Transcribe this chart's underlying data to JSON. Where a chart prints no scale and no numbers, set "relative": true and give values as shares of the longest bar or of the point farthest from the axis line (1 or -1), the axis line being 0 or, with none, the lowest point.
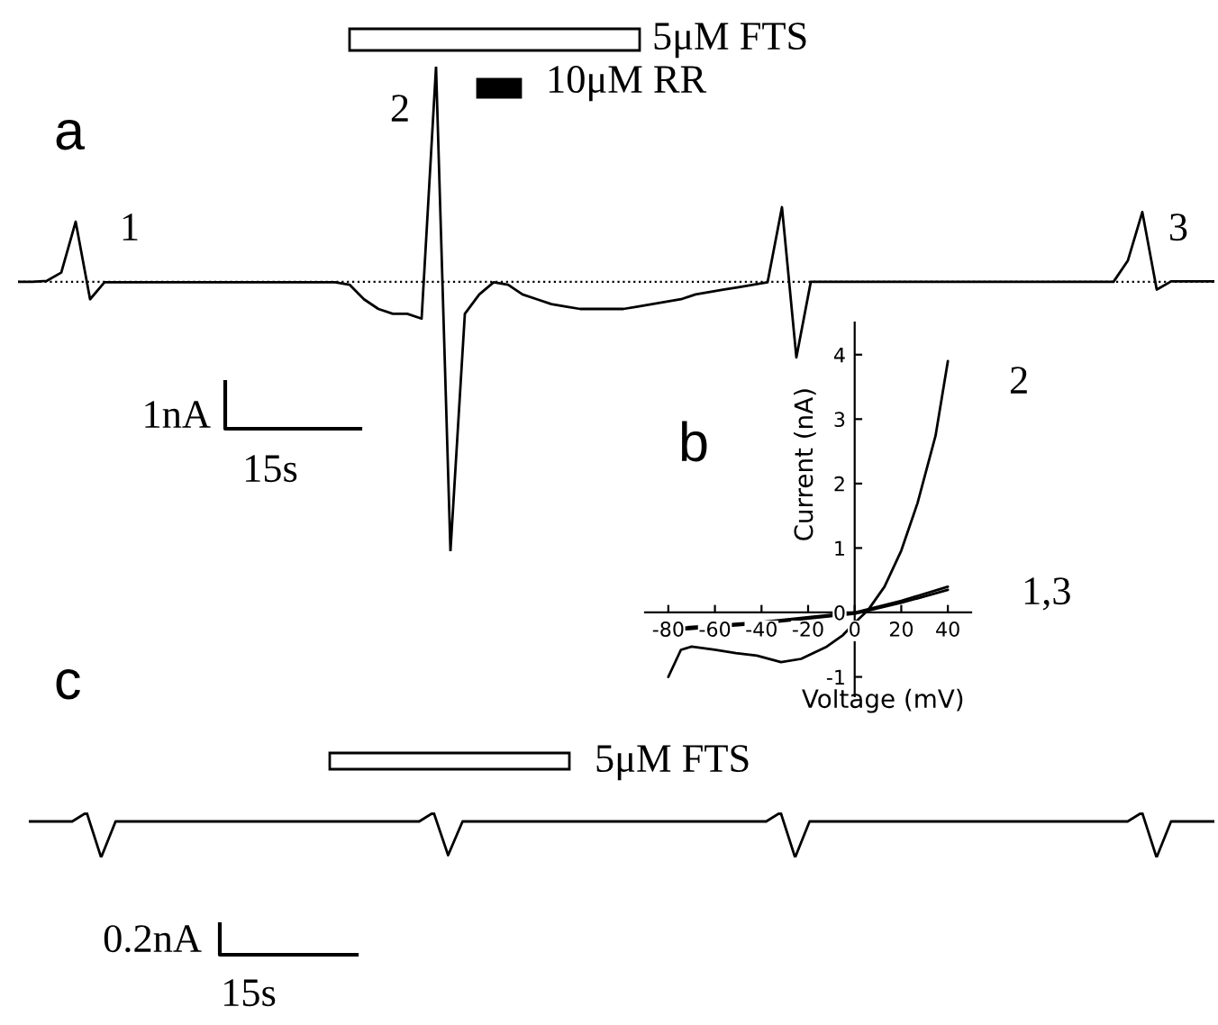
{
  "chart_data": [
    {
      "type": "line",
      "relative": true,
      "categories": [
        null,
        null,
        null,
        null,
        null,
        null,
        null,
        null,
        null,
        null,
        null,
        null,
        null,
        null,
        null,
        null,
        null,
        null,
        null,
        null,
        null,
        null,
        null,
        null,
        null,
        null,
        null,
        null,
        null,
        null,
        null,
        null,
        null,
        null,
        null,
        null,
        null,
        null,
        null,
        null,
        null,
        null,
        null,
        null,
        null,
        null,
        null,
        null,
        null,
        null,
        null,
        null,
        null,
        null,
        null,
        null,
        null,
        null,
        null,
        null,
        null,
        null,
        null,
        null,
        null,
        null,
        null,
        null,
        null,
        null,
        null,
        null,
        null,
        null,
        null,
        null,
        null,
        null,
        null,
        null,
        null,
        null,
        null,
        null
      ],
      "series": [
        {
          "color": "#000000",
          "values": [
            0.556,
            0.556,
            0.558,
            0.575,
            0.68,
            0.52,
            0.555,
            0.555,
            0.555,
            0.555,
            0.555,
            0.555,
            0.555,
            0.555,
            0.555,
            0.555,
            0.555,
            0.555,
            0.555,
            0.555,
            0.555,
            0.555,
            0.555,
            0.55,
            0.52,
            0.5,
            0.49,
            0.49,
            0.48,
            1.0,
            0.0,
            0.49,
            0.53,
            0.555,
            0.55,
            0.53,
            0.52,
            0.51,
            0.505,
            0.5,
            0.5,
            0.5,
            0.5,
            0.505,
            0.51,
            0.515,
            0.52,
            0.53,
            0.535,
            0.54,
            0.545,
            0.55,
            0.555,
            0.71,
            0.4,
            0.556,
            0.556,
            0.556,
            0.556,
            0.556,
            0.556,
            0.556,
            0.556,
            0.556,
            0.556,
            0.556,
            0.556,
            0.556,
            0.556,
            0.556,
            0.556,
            0.556,
            0.556,
            0.556,
            0.556,
            0.556,
            0.556,
            0.6,
            0.7,
            0.54,
            0.557,
            0.557,
            0.557,
            0.557
          ]
        }
      ],
      "ref_lines": [
        {
          "axis": "y",
          "value": 0.556,
          "line_style": "dotted",
          "color": "#000000"
        }
      ],
      "annotations": [
        "a",
        "1",
        "2",
        "3",
        "5μM FTS",
        "10μM RR",
        "1nA",
        "15s"
      ]
    },
    {
      "type": "line",
      "xlabel": "Voltage (mV)",
      "ylabel": "Current (nA)",
      "xlim": [
        -90,
        50
      ],
      "ylim": [
        -1.3,
        4.5
      ],
      "xticks": [
        -80,
        -60,
        -40,
        -20,
        0,
        20,
        40
      ],
      "yticks": [
        -1,
        0,
        1,
        2,
        3,
        4
      ],
      "series": [
        {
          "name": "2",
          "color": "#000000",
          "x": [
            -80,
            -74.6,
            -70,
            -60,
            -51,
            -42,
            -31.6,
            -23,
            -12,
            -5,
            0,
            5.6,
            12.8,
            20,
            27,
            34.7,
            40
          ],
          "values": [
            -1.0,
            -0.58,
            -0.53,
            -0.58,
            -0.63,
            -0.67,
            -0.77,
            -0.72,
            -0.53,
            -0.35,
            -0.16,
            0.03,
            0.4,
            0.96,
            1.7,
            2.74,
            3.9
          ]
        },
        {
          "name": "1,3",
          "color": "#000000",
          "x": [
            -80,
            -40,
            0,
            20,
            40
          ],
          "values": [
            -0.25,
            -0.15,
            0.0,
            0.18,
            0.4
          ]
        },
        {
          "color": "#000000",
          "x": [
            -80,
            -40,
            0,
            20,
            40
          ],
          "values": [
            -0.28,
            -0.17,
            -0.02,
            0.15,
            0.35
          ]
        }
      ],
      "annotations": [
        "b"
      ]
    },
    {
      "type": "line",
      "relative": true,
      "categories": [
        null,
        null,
        null,
        null,
        null,
        null,
        null,
        null,
        null,
        null,
        null,
        null,
        null,
        null,
        null,
        null,
        null,
        null,
        null,
        null,
        null,
        null,
        null,
        null,
        null,
        null,
        null,
        null,
        null,
        null,
        null,
        null,
        null,
        null,
        null,
        null,
        null,
        null,
        null,
        null,
        null,
        null,
        null,
        null,
        null,
        null,
        null,
        null,
        null,
        null,
        null,
        null,
        null,
        null,
        null,
        null,
        null,
        null,
        null,
        null,
        null,
        null,
        null,
        null,
        null,
        null,
        null,
        null,
        null,
        null,
        null,
        null,
        null,
        null,
        null,
        null,
        null,
        null,
        null,
        null,
        null,
        null,
        null
      ],
      "series": [
        {
          "color": "#000000",
          "values": [
            0.8,
            0.8,
            0.8,
            0.8,
            1.0,
            0.0,
            0.8,
            0.8,
            0.8,
            0.8,
            0.8,
            0.8,
            0.8,
            0.8,
            0.8,
            0.8,
            0.8,
            0.8,
            0.8,
            0.8,
            0.8,
            0.8,
            0.8,
            0.8,
            0.8,
            0.8,
            0.8,
            0.8,
            1.0,
            0.05,
            0.8,
            0.8,
            0.8,
            0.8,
            0.8,
            0.8,
            0.8,
            0.8,
            0.8,
            0.8,
            0.8,
            0.8,
            0.8,
            0.8,
            0.8,
            0.8,
            0.8,
            0.8,
            0.8,
            0.8,
            0.8,
            0.8,
            1.0,
            0.0,
            0.8,
            0.8,
            0.8,
            0.8,
            0.8,
            0.8,
            0.8,
            0.8,
            0.8,
            0.8,
            0.8,
            0.8,
            0.8,
            0.8,
            0.8,
            0.8,
            0.8,
            0.8,
            0.8,
            0.8,
            0.8,
            0.8,
            0.8,
            1.0,
            0.0,
            0.8,
            0.8,
            0.8,
            0.8
          ]
        }
      ],
      "annotations": [
        "c",
        "5μM FTS",
        "0.2nA",
        "15s"
      ]
    }
  ]
}
